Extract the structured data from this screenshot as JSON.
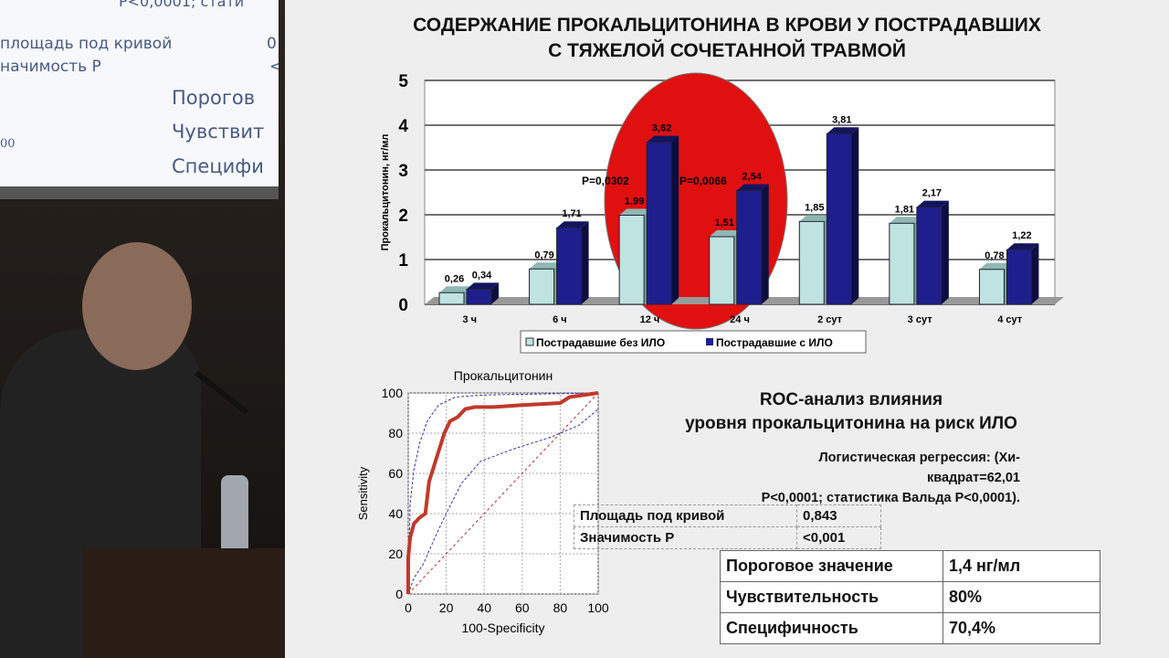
{
  "screen_fragment": {
    "line0": "P<0,0001; стати",
    "row1": "площадь под кривой",
    "row1v": "0",
    "row2": "начимость P",
    "row2v": "<",
    "row3": "Порогов",
    "row4": "Чувствит",
    "row5": "Специфи",
    "tick": "00"
  },
  "slide": {
    "title_line1": "СОДЕРЖАНИЕ ПРОКАЛЬЦИТОНИНА В КРОВИ У ПОСТРАДАВШИХ",
    "title_line2": "С ТЯЖЕЛОЙ СОЧЕТАННОЙ ТРАВМОЙ",
    "roc_title_line1": "ROC-анализ влияния",
    "roc_title_line2": "уровня прокальцитонина на риск ИЛО",
    "regression_line1": "Логистическая регрессия: (Хи-квадрат=62,01",
    "regression_line2": "P<0,0001; статистика Вальда P<0,0001).",
    "auc_table": [
      [
        "Площадь под кривой",
        "0,843"
      ],
      [
        "Значимость P",
        "<0,001"
      ]
    ],
    "threshold_table": [
      [
        "Пороговое значение",
        "1,4 нг/мл"
      ],
      [
        "Чувствительность",
        "80%"
      ],
      [
        "Специфичность",
        "70,4%"
      ]
    ]
  },
  "chart_data": [
    {
      "type": "bar",
      "title": "СОДЕРЖАНИЕ ПРОКАЛЬЦИТОНИНА В КРОВИ У ПОСТРАДАВШИХ С ТЯЖЕЛОЙ СОЧЕТАННОЙ ТРАВМОЙ",
      "ylabel": "Прокальцитонин, нг/мл",
      "ylim": [
        0,
        5
      ],
      "yticks": [
        "0",
        "1",
        "2",
        "3",
        "4",
        "5"
      ],
      "categories": [
        "3 ч",
        "6 ч",
        "12 ч",
        "24 ч",
        "2 сут",
        "3 сут",
        "4 сут"
      ],
      "series": [
        {
          "name": "Пострадавшие без ИЛО",
          "color": "#bfe3e0",
          "values": [
            0.26,
            0.79,
            1.99,
            1.51,
            1.85,
            1.81,
            0.78
          ],
          "labels": [
            "0,26",
            "0,79",
            "1,99",
            "1,51",
            "1,85",
            "1,81",
            "0,78"
          ]
        },
        {
          "name": "Пострадавшие с ИЛО",
          "color": "#1e1e8c",
          "values": [
            0.34,
            1.71,
            3.62,
            2.54,
            3.81,
            2.17,
            1.22
          ],
          "labels": [
            "0,34",
            "1,71",
            "3,62",
            "2,54",
            "3,81",
            "2,17",
            "1,22"
          ]
        }
      ],
      "annotations": [
        "P=0,0302",
        "P=0,0066"
      ],
      "legend": "bottom",
      "highlight_color": "#e01010"
    },
    {
      "type": "line",
      "title": "Прокальцитонин",
      "xlabel": "100-Specificity",
      "ylabel": "Sensitivity",
      "xlim": [
        0,
        100
      ],
      "ylim": [
        0,
        100
      ],
      "ticks": [
        "0",
        "20",
        "40",
        "60",
        "80",
        "100"
      ],
      "grid": true,
      "roc": [
        [
          0,
          0
        ],
        [
          0,
          18
        ],
        [
          1,
          28
        ],
        [
          3,
          35
        ],
        [
          6,
          38
        ],
        [
          9,
          40
        ],
        [
          11,
          56
        ],
        [
          13,
          62
        ],
        [
          15,
          68
        ],
        [
          17,
          74
        ],
        [
          19,
          80
        ],
        [
          22,
          86
        ],
        [
          26,
          88
        ],
        [
          30,
          92
        ],
        [
          35,
          93
        ],
        [
          45,
          93
        ],
        [
          60,
          94
        ],
        [
          80,
          95
        ],
        [
          85,
          98
        ],
        [
          100,
          100
        ]
      ],
      "ci_upper": [
        [
          0,
          0
        ],
        [
          1,
          45
        ],
        [
          3,
          62
        ],
        [
          6,
          75
        ],
        [
          10,
          86
        ],
        [
          16,
          94
        ],
        [
          25,
          98
        ],
        [
          40,
          99
        ],
        [
          100,
          100
        ]
      ],
      "ci_lower": [
        [
          0,
          0
        ],
        [
          3,
          8
        ],
        [
          8,
          15
        ],
        [
          14,
          28
        ],
        [
          20,
          40
        ],
        [
          28,
          55
        ],
        [
          38,
          66
        ],
        [
          55,
          72
        ],
        [
          75,
          78
        ],
        [
          90,
          84
        ],
        [
          100,
          92
        ]
      ]
    }
  ]
}
